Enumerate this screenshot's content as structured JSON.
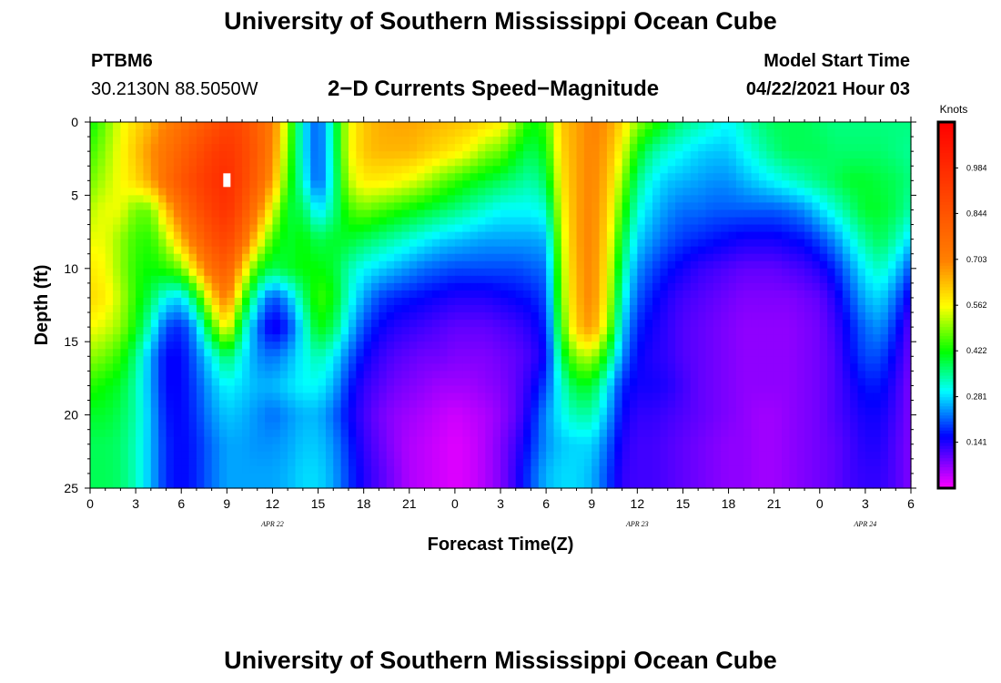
{
  "header": {
    "title": "University of Southern Mississippi Ocean Cube",
    "station_id": "PTBM6",
    "station_coords": "30.2130N  88.5050W",
    "subtitle": "2−D Currents Speed−Magnitude",
    "model_start_label": "Model Start Time",
    "model_start_value": "04/22/2021 Hour 03"
  },
  "footer": {
    "title": "University of Southern Mississippi Ocean Cube"
  },
  "chart_data": {
    "type": "heatmap",
    "title": "2-D Currents Speed-Magnitude",
    "xlabel": "Forecast Time(Z)",
    "ylabel": "Depth (ft)",
    "x_range_hours": [
      0,
      54
    ],
    "y_range_ft": [
      0,
      25
    ],
    "x_ticks": [
      {
        "h": 0,
        "label": "0"
      },
      {
        "h": 3,
        "label": "3"
      },
      {
        "h": 6,
        "label": "6"
      },
      {
        "h": 9,
        "label": "9"
      },
      {
        "h": 12,
        "label": "12"
      },
      {
        "h": 15,
        "label": "15"
      },
      {
        "h": 18,
        "label": "18"
      },
      {
        "h": 21,
        "label": "21"
      },
      {
        "h": 24,
        "label": "0"
      },
      {
        "h": 27,
        "label": "3"
      },
      {
        "h": 30,
        "label": "6"
      },
      {
        "h": 33,
        "label": "9"
      },
      {
        "h": 36,
        "label": "12"
      },
      {
        "h": 39,
        "label": "15"
      },
      {
        "h": 42,
        "label": "18"
      },
      {
        "h": 45,
        "label": "21"
      },
      {
        "h": 48,
        "label": "0"
      },
      {
        "h": 51,
        "label": "3"
      },
      {
        "h": 54,
        "label": "6"
      }
    ],
    "y_ticks": [
      {
        "d": 0,
        "label": "0"
      },
      {
        "d": 5,
        "label": "5"
      },
      {
        "d": 10,
        "label": "10"
      },
      {
        "d": 15,
        "label": "15"
      },
      {
        "d": 20,
        "label": "20"
      },
      {
        "d": 25,
        "label": "25"
      }
    ],
    "date_labels": [
      {
        "h": 12,
        "label": "APR  22"
      },
      {
        "h": 36,
        "label": "APR  23"
      },
      {
        "h": 51,
        "label": "APR  24"
      }
    ],
    "max_marker": {
      "h": 9,
      "d": 4
    },
    "colorbar": {
      "unit": "Knots",
      "min": 0.0,
      "max": 1.125,
      "ticks": [
        {
          "v": 0.984,
          "label": "0.984"
        },
        {
          "v": 0.844,
          "label": "0.844"
        },
        {
          "v": 0.703,
          "label": "0.703"
        },
        {
          "v": 0.562,
          "label": "0.562"
        },
        {
          "v": 0.422,
          "label": "0.422"
        },
        {
          "v": 0.281,
          "label": "0.281"
        },
        {
          "v": 0.141,
          "label": "0.141"
        }
      ],
      "stops": [
        {
          "v": 0.0,
          "color": "#ff00ff"
        },
        {
          "v": 0.16,
          "color": "#0000ff"
        },
        {
          "v": 0.3,
          "color": "#00ffff"
        },
        {
          "v": 0.42,
          "color": "#00ff00"
        },
        {
          "v": 0.56,
          "color": "#ffff00"
        },
        {
          "v": 0.7,
          "color": "#ff8000"
        },
        {
          "v": 1.125,
          "color": "#ff0000"
        }
      ]
    },
    "depths_ft": [
      0,
      2,
      4,
      6,
      8,
      10,
      12,
      14,
      16,
      18,
      20,
      22,
      24
    ],
    "times_hours": [
      0,
      1,
      2,
      3,
      4,
      5,
      6,
      7,
      8,
      9,
      10,
      11,
      12,
      13,
      14,
      15,
      16,
      17,
      18,
      19,
      20,
      21,
      22,
      23,
      24,
      25,
      26,
      27,
      28,
      29,
      30,
      31,
      32,
      33,
      34,
      35,
      36,
      37,
      38,
      39,
      40,
      41,
      42,
      43,
      44,
      45,
      46,
      47,
      48,
      49,
      50,
      51,
      52,
      53,
      54
    ],
    "speed_knots": [
      [
        0.42,
        0.48,
        0.55,
        0.6,
        0.64,
        0.7,
        0.75,
        0.8,
        0.85,
        0.9,
        0.88,
        0.8,
        0.72,
        0.5,
        0.3,
        0.2,
        0.35,
        0.55,
        0.62,
        0.65,
        0.66,
        0.66,
        0.65,
        0.64,
        0.63,
        0.62,
        0.6,
        0.58,
        0.5,
        0.42,
        0.45,
        0.62,
        0.66,
        0.7,
        0.68,
        0.6,
        0.5,
        0.45,
        0.4,
        0.36,
        0.34,
        0.32,
        0.3,
        0.33,
        0.36,
        0.38,
        0.38,
        0.38,
        0.37,
        0.36,
        0.36,
        0.36,
        0.36,
        0.36,
        0.36
      ],
      [
        0.45,
        0.5,
        0.56,
        0.62,
        0.68,
        0.74,
        0.8,
        0.86,
        0.92,
        0.95,
        0.9,
        0.82,
        0.7,
        0.48,
        0.3,
        0.2,
        0.34,
        0.55,
        0.62,
        0.64,
        0.64,
        0.64,
        0.62,
        0.6,
        0.58,
        0.55,
        0.5,
        0.48,
        0.42,
        0.38,
        0.42,
        0.6,
        0.66,
        0.7,
        0.66,
        0.55,
        0.42,
        0.35,
        0.32,
        0.3,
        0.28,
        0.27,
        0.27,
        0.3,
        0.33,
        0.36,
        0.38,
        0.38,
        0.38,
        0.37,
        0.37,
        0.37,
        0.37,
        0.36,
        0.35
      ],
      [
        0.48,
        0.52,
        0.56,
        0.6,
        0.66,
        0.76,
        0.84,
        0.9,
        0.95,
        0.98,
        0.9,
        0.8,
        0.66,
        0.45,
        0.32,
        0.2,
        0.33,
        0.52,
        0.58,
        0.58,
        0.57,
        0.55,
        0.52,
        0.48,
        0.45,
        0.42,
        0.4,
        0.38,
        0.36,
        0.34,
        0.38,
        0.58,
        0.66,
        0.7,
        0.64,
        0.5,
        0.36,
        0.3,
        0.27,
        0.26,
        0.25,
        0.24,
        0.24,
        0.26,
        0.28,
        0.3,
        0.32,
        0.34,
        0.36,
        0.38,
        0.4,
        0.4,
        0.39,
        0.38,
        0.36
      ],
      [
        0.52,
        0.55,
        0.55,
        0.48,
        0.48,
        0.62,
        0.75,
        0.85,
        0.92,
        0.96,
        0.86,
        0.72,
        0.55,
        0.4,
        0.38,
        0.28,
        0.35,
        0.45,
        0.48,
        0.46,
        0.44,
        0.42,
        0.4,
        0.38,
        0.36,
        0.34,
        0.32,
        0.3,
        0.3,
        0.3,
        0.32,
        0.55,
        0.66,
        0.7,
        0.62,
        0.45,
        0.32,
        0.27,
        0.24,
        0.22,
        0.22,
        0.21,
        0.21,
        0.21,
        0.21,
        0.21,
        0.22,
        0.24,
        0.28,
        0.32,
        0.36,
        0.4,
        0.4,
        0.38,
        0.34
      ],
      [
        0.55,
        0.55,
        0.5,
        0.45,
        0.44,
        0.52,
        0.64,
        0.76,
        0.86,
        0.9,
        0.78,
        0.6,
        0.45,
        0.4,
        0.42,
        0.38,
        0.4,
        0.4,
        0.38,
        0.36,
        0.34,
        0.32,
        0.3,
        0.28,
        0.27,
        0.26,
        0.25,
        0.25,
        0.25,
        0.25,
        0.26,
        0.52,
        0.66,
        0.7,
        0.6,
        0.4,
        0.28,
        0.24,
        0.21,
        0.19,
        0.18,
        0.17,
        0.16,
        0.15,
        0.15,
        0.15,
        0.16,
        0.17,
        0.2,
        0.24,
        0.3,
        0.35,
        0.38,
        0.34,
        0.28
      ],
      [
        0.58,
        0.56,
        0.5,
        0.44,
        0.42,
        0.44,
        0.48,
        0.62,
        0.76,
        0.82,
        0.62,
        0.44,
        0.38,
        0.4,
        0.42,
        0.42,
        0.4,
        0.34,
        0.3,
        0.28,
        0.26,
        0.24,
        0.22,
        0.21,
        0.2,
        0.2,
        0.2,
        0.2,
        0.2,
        0.21,
        0.22,
        0.5,
        0.65,
        0.7,
        0.58,
        0.36,
        0.24,
        0.2,
        0.17,
        0.15,
        0.13,
        0.12,
        0.11,
        0.1,
        0.1,
        0.1,
        0.11,
        0.12,
        0.14,
        0.18,
        0.24,
        0.3,
        0.33,
        0.28,
        0.2
      ],
      [
        0.6,
        0.58,
        0.52,
        0.44,
        0.38,
        0.3,
        0.28,
        0.4,
        0.6,
        0.72,
        0.48,
        0.3,
        0.2,
        0.25,
        0.36,
        0.45,
        0.42,
        0.32,
        0.25,
        0.2,
        0.18,
        0.17,
        0.16,
        0.15,
        0.14,
        0.14,
        0.14,
        0.15,
        0.16,
        0.17,
        0.2,
        0.48,
        0.64,
        0.7,
        0.56,
        0.32,
        0.21,
        0.17,
        0.14,
        0.12,
        0.11,
        0.1,
        0.09,
        0.08,
        0.08,
        0.08,
        0.08,
        0.09,
        0.1,
        0.14,
        0.2,
        0.26,
        0.28,
        0.22,
        0.14
      ],
      [
        0.56,
        0.54,
        0.5,
        0.42,
        0.32,
        0.2,
        0.18,
        0.26,
        0.44,
        0.58,
        0.36,
        0.22,
        0.14,
        0.18,
        0.3,
        0.42,
        0.38,
        0.28,
        0.2,
        0.16,
        0.14,
        0.13,
        0.12,
        0.11,
        0.1,
        0.1,
        0.1,
        0.11,
        0.12,
        0.14,
        0.18,
        0.44,
        0.62,
        0.68,
        0.52,
        0.28,
        0.18,
        0.15,
        0.13,
        0.11,
        0.1,
        0.09,
        0.08,
        0.07,
        0.07,
        0.07,
        0.07,
        0.08,
        0.09,
        0.12,
        0.17,
        0.22,
        0.24,
        0.18,
        0.1
      ],
      [
        0.5,
        0.48,
        0.44,
        0.36,
        0.25,
        0.16,
        0.16,
        0.22,
        0.3,
        0.38,
        0.3,
        0.24,
        0.22,
        0.25,
        0.3,
        0.34,
        0.3,
        0.22,
        0.16,
        0.13,
        0.11,
        0.1,
        0.09,
        0.09,
        0.08,
        0.08,
        0.08,
        0.09,
        0.1,
        0.12,
        0.16,
        0.38,
        0.5,
        0.52,
        0.4,
        0.24,
        0.16,
        0.14,
        0.13,
        0.11,
        0.1,
        0.09,
        0.08,
        0.07,
        0.07,
        0.07,
        0.07,
        0.08,
        0.09,
        0.11,
        0.16,
        0.2,
        0.2,
        0.15,
        0.09
      ],
      [
        0.44,
        0.42,
        0.4,
        0.34,
        0.25,
        0.16,
        0.16,
        0.2,
        0.26,
        0.3,
        0.28,
        0.26,
        0.26,
        0.28,
        0.3,
        0.3,
        0.26,
        0.18,
        0.13,
        0.11,
        0.09,
        0.08,
        0.07,
        0.06,
        0.06,
        0.06,
        0.07,
        0.08,
        0.1,
        0.14,
        0.2,
        0.32,
        0.4,
        0.4,
        0.3,
        0.18,
        0.15,
        0.15,
        0.14,
        0.12,
        0.1,
        0.09,
        0.08,
        0.07,
        0.07,
        0.07,
        0.07,
        0.08,
        0.09,
        0.11,
        0.14,
        0.17,
        0.17,
        0.13,
        0.08
      ],
      [
        0.4,
        0.4,
        0.38,
        0.34,
        0.26,
        0.17,
        0.16,
        0.19,
        0.24,
        0.27,
        0.26,
        0.24,
        0.22,
        0.24,
        0.26,
        0.26,
        0.22,
        0.16,
        0.12,
        0.09,
        0.07,
        0.06,
        0.05,
        0.04,
        0.03,
        0.04,
        0.05,
        0.07,
        0.1,
        0.16,
        0.24,
        0.3,
        0.34,
        0.34,
        0.26,
        0.16,
        0.13,
        0.13,
        0.12,
        0.11,
        0.1,
        0.09,
        0.08,
        0.07,
        0.06,
        0.06,
        0.07,
        0.08,
        0.09,
        0.11,
        0.13,
        0.15,
        0.15,
        0.12,
        0.08
      ],
      [
        0.38,
        0.38,
        0.37,
        0.33,
        0.26,
        0.18,
        0.16,
        0.18,
        0.22,
        0.25,
        0.25,
        0.24,
        0.24,
        0.25,
        0.27,
        0.27,
        0.24,
        0.18,
        0.13,
        0.1,
        0.07,
        0.05,
        0.04,
        0.03,
        0.02,
        0.03,
        0.05,
        0.08,
        0.12,
        0.18,
        0.24,
        0.27,
        0.28,
        0.28,
        0.22,
        0.14,
        0.12,
        0.12,
        0.11,
        0.1,
        0.09,
        0.08,
        0.07,
        0.07,
        0.06,
        0.06,
        0.07,
        0.08,
        0.09,
        0.1,
        0.12,
        0.14,
        0.14,
        0.11,
        0.08
      ],
      [
        0.38,
        0.38,
        0.37,
        0.33,
        0.26,
        0.18,
        0.16,
        0.18,
        0.22,
        0.25,
        0.25,
        0.25,
        0.25,
        0.26,
        0.28,
        0.28,
        0.25,
        0.19,
        0.14,
        0.11,
        0.08,
        0.05,
        0.04,
        0.03,
        0.02,
        0.03,
        0.05,
        0.08,
        0.13,
        0.2,
        0.26,
        0.28,
        0.28,
        0.26,
        0.2,
        0.13,
        0.12,
        0.12,
        0.11,
        0.1,
        0.09,
        0.08,
        0.07,
        0.07,
        0.06,
        0.06,
        0.07,
        0.08,
        0.09,
        0.1,
        0.12,
        0.13,
        0.13,
        0.11,
        0.08
      ]
    ]
  }
}
